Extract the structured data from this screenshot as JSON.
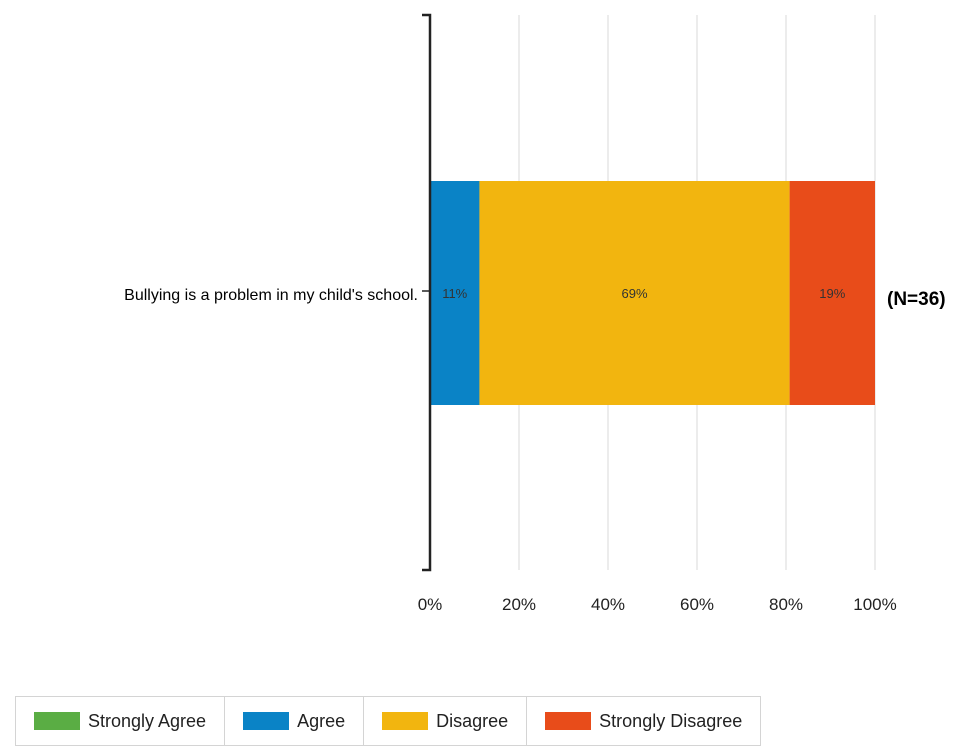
{
  "chart_data": {
    "type": "bar",
    "orientation": "horizontal",
    "stacked": true,
    "categories": [
      "Bullying is a problem in my child's school."
    ],
    "series": [
      {
        "name": "Strongly Agree",
        "values": [
          0
        ],
        "color": "#5aad44",
        "label": ""
      },
      {
        "name": "Agree",
        "values": [
          11
        ],
        "color": "#0a83c6",
        "label": "11%"
      },
      {
        "name": "Disagree",
        "values": [
          69
        ],
        "color": "#f2b50f",
        "label": "69%"
      },
      {
        "name": "Strongly Disagree",
        "values": [
          19
        ],
        "color": "#e84c1a",
        "label": "19%"
      }
    ],
    "xlim": [
      0,
      100
    ],
    "x_ticks": [
      "0%",
      "20%",
      "40%",
      "60%",
      "80%",
      "100%"
    ],
    "annotation": "(N=36)",
    "grid": true,
    "legend_position": "bottom"
  }
}
